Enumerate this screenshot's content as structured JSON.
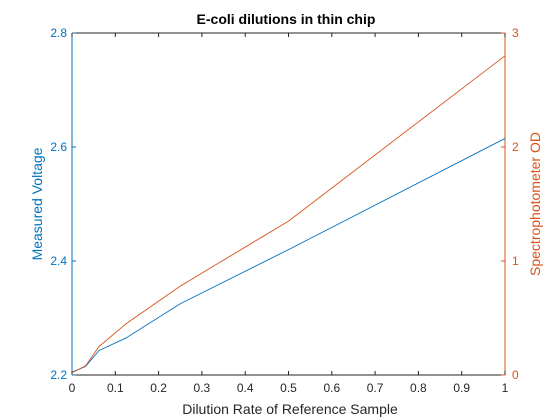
{
  "chart_data": {
    "type": "line",
    "title": "E-coli dilutions in thin chip",
    "xlabel": "Dilution Rate of Reference Sample",
    "ylabel_left": "Measured Voltage",
    "ylabel_right": "Spectrophotometer OD",
    "xlim": [
      0,
      1
    ],
    "ylim_left": [
      2.2,
      2.8
    ],
    "ylim_right": [
      0,
      3
    ],
    "x_ticks": [
      0,
      0.1,
      0.2,
      0.3,
      0.4,
      0.5,
      0.6,
      0.7,
      0.8,
      0.9,
      1
    ],
    "x_tick_labels": [
      "0",
      "0.1",
      "0.2",
      "0.3",
      "0.4",
      "0.5",
      "0.6",
      "0.7",
      "0.8",
      "0.9",
      "1"
    ],
    "y_left_ticks": [
      2.2,
      2.4,
      2.6,
      2.8
    ],
    "y_left_tick_labels": [
      "2.2",
      "2.4",
      "2.6",
      "2.8"
    ],
    "y_right_ticks": [
      0,
      1,
      2,
      3
    ],
    "y_right_tick_labels": [
      "0",
      "1",
      "2",
      "3"
    ],
    "grid": false,
    "legend": "none",
    "colors": {
      "left": "#0072BD",
      "right": "#D95319",
      "axis": "#262626"
    },
    "series": [
      {
        "axis": "left",
        "x": [
          0,
          0.03125,
          0.0625,
          0.125,
          0.25,
          0.5,
          1
        ],
        "values": [
          2.205,
          2.215,
          2.243,
          2.265,
          2.325,
          2.42,
          2.615
        ]
      },
      {
        "axis": "right",
        "x": [
          0,
          0.03125,
          0.0625,
          0.125,
          0.25,
          0.5,
          1
        ],
        "values": [
          0.02,
          0.08,
          0.25,
          0.45,
          0.78,
          1.35,
          2.8
        ]
      }
    ]
  }
}
